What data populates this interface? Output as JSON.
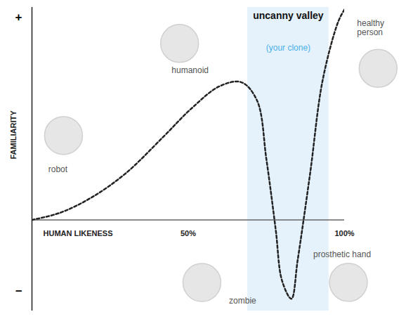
{
  "chart_data": {
    "type": "line",
    "x_label": "HUMAN LIKENESS",
    "y_label": "FAMILIARITY",
    "x": [
      0,
      9,
      19,
      30,
      42,
      51,
      60,
      67,
      72,
      75,
      78,
      80,
      83,
      85,
      89,
      93,
      98,
      100
    ],
    "values": [
      0,
      0.035,
      0.11,
      0.23,
      0.41,
      0.55,
      0.66,
      0.68,
      0.59,
      0.3,
      -0.05,
      -0.3,
      -0.39,
      -0.2,
      0.23,
      0.69,
      0.98,
      1.04
    ],
    "color": "#222222",
    "line_style": "dashed",
    "xlim": [
      0,
      100
    ],
    "ylim": [
      -0.45,
      1.05
    ],
    "xticks": [
      {
        "value": 50,
        "label": "50%"
      },
      {
        "value": 100,
        "label": "100%"
      }
    ],
    "yticks": [
      {
        "value": 1,
        "label": "+"
      },
      {
        "value": -0.35,
        "label": "–"
      }
    ],
    "grid": false,
    "highlight": {
      "x": [
        69,
        95
      ],
      "label": "uncanny valley",
      "sublabel": "(your clone)",
      "color": "#e5f2fc"
    },
    "annotations": [
      {
        "text": "robot",
        "x": 8.3,
        "y": 0.25
      },
      {
        "text": "humanoid",
        "x": 50.6,
        "y": 0.74
      },
      {
        "text": "healthy\nperson",
        "x": 104,
        "y": 0.95
      },
      {
        "text": "zombie",
        "x": 67.4,
        "y": -0.4
      },
      {
        "text": "prosthetic hand",
        "x": 90,
        "y": -0.17
      }
    ]
  }
}
